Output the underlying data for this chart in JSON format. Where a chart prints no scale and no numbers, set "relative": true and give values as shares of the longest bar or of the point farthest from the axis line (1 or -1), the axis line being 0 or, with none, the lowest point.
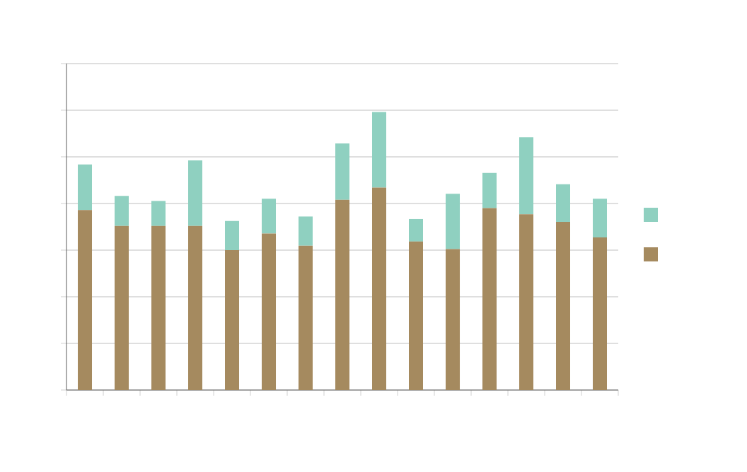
{
  "chart_data": {
    "type": "bar",
    "stacked": true,
    "relative": true,
    "grid": "y",
    "categories": [
      null,
      null,
      null,
      null,
      null,
      null,
      null,
      null,
      null,
      null,
      null,
      null,
      null,
      null,
      null
    ],
    "series": [
      {
        "color": "#a58a5f",
        "values": [
          0.647,
          0.59,
          0.59,
          0.59,
          0.503,
          0.563,
          0.519,
          0.684,
          0.728,
          0.534,
          0.507,
          0.654,
          0.632,
          0.605,
          0.549
        ]
      },
      {
        "color": "#8fd0c0",
        "values": [
          0.164,
          0.108,
          0.09,
          0.236,
          0.105,
          0.125,
          0.105,
          0.203,
          0.272,
          0.081,
          0.199,
          0.127,
          0.277,
          0.135,
          0.139
        ]
      }
    ]
  }
}
